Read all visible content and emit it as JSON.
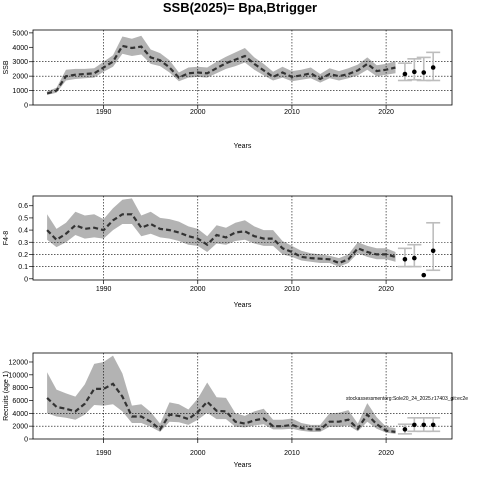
{
  "title": "SSB(2025)= Bpa,Btrigger",
  "chart_data": [
    {
      "type": "line",
      "ylabel": "SSB",
      "xlabel": "Years",
      "xlim": [
        1982.5,
        2027
      ],
      "ylim": [
        0,
        5200
      ],
      "xticks": [
        1990,
        2000,
        2010,
        2020
      ],
      "yticks": [
        0,
        1000,
        2000,
        3000,
        4000,
        5000
      ],
      "grid_x": [
        1990,
        2000,
        2010,
        2020
      ],
      "grid_y": [
        1000,
        2000,
        3000
      ],
      "series": [
        {
          "x": [
            1984,
            1985,
            1986,
            1987,
            1988,
            1989,
            1990,
            1991,
            1992,
            1993,
            1994,
            1995,
            1996,
            1997,
            1998,
            1999,
            2000,
            2001,
            2002,
            2003,
            2004,
            2005,
            2006,
            2007,
            2008,
            2009,
            2010,
            2011,
            2012,
            2013,
            2014,
            2015,
            2016,
            2017,
            2018,
            2019,
            2020,
            2021
          ],
          "y": [
            800,
            1000,
            2000,
            2100,
            2150,
            2200,
            2600,
            3000,
            4100,
            3950,
            4050,
            3300,
            3100,
            2600,
            1900,
            2200,
            2250,
            2200,
            2550,
            2900,
            3150,
            3400,
            2850,
            2400,
            1950,
            2250,
            1950,
            2050,
            2200,
            1800,
            2150,
            2000,
            2150,
            2400,
            2850,
            2350,
            2450,
            2600
          ],
          "lower": [
            700,
            850,
            1700,
            1800,
            1850,
            1900,
            2300,
            2650,
            3550,
            3400,
            3500,
            2850,
            2700,
            2250,
            1650,
            1900,
            1950,
            1900,
            2200,
            2500,
            2700,
            2950,
            2450,
            2050,
            1700,
            1900,
            1650,
            1750,
            1850,
            1550,
            1850,
            1700,
            1850,
            2050,
            2450,
            2000,
            2100,
            2200
          ],
          "upper": [
            950,
            1200,
            2450,
            2500,
            2500,
            2550,
            3000,
            3450,
            4750,
            4600,
            4800,
            3850,
            3600,
            3100,
            2250,
            2600,
            2650,
            2600,
            3000,
            3350,
            3650,
            3950,
            3300,
            2850,
            2300,
            2650,
            2350,
            2450,
            2600,
            2150,
            2550,
            2350,
            2550,
            2800,
            3300,
            2750,
            2850,
            3050
          ]
        }
      ],
      "projections": [
        {
          "x": 2022,
          "y": 2150,
          "lo": 1700,
          "hi": 2900
        },
        {
          "x": 2023,
          "y": 2300,
          "lo": 1750,
          "hi": 3200
        },
        {
          "x": 2024,
          "y": 2250,
          "lo": 1700,
          "hi": 3300
        },
        {
          "x": 2025,
          "y": 2600,
          "lo": 1700,
          "hi": 3650
        }
      ]
    },
    {
      "type": "line",
      "ylabel": "F4-8",
      "xlabel": "Years",
      "xlim": [
        1982.5,
        2027
      ],
      "ylim": [
        -0.01,
        0.68
      ],
      "xticks": [
        1990,
        2000,
        2010,
        2020
      ],
      "yticks": [
        0,
        0.1,
        0.2,
        0.3,
        0.4,
        0.5,
        0.6
      ],
      "grid_x": [
        1990,
        2000,
        2010,
        2020
      ],
      "grid_y": [
        0.1,
        0.2,
        0.3
      ],
      "series": [
        {
          "x": [
            1984,
            1985,
            1986,
            1987,
            1988,
            1989,
            1990,
            1991,
            1992,
            1993,
            1994,
            1995,
            1996,
            1997,
            1998,
            1999,
            2000,
            2001,
            2002,
            2003,
            2004,
            2005,
            2006,
            2007,
            2008,
            2009,
            2010,
            2011,
            2012,
            2013,
            2014,
            2015,
            2016,
            2017,
            2018,
            2019,
            2020,
            2021
          ],
          "y": [
            0.4,
            0.32,
            0.37,
            0.44,
            0.41,
            0.42,
            0.4,
            0.48,
            0.53,
            0.53,
            0.42,
            0.45,
            0.41,
            0.4,
            0.38,
            0.35,
            0.33,
            0.28,
            0.36,
            0.34,
            0.38,
            0.39,
            0.35,
            0.33,
            0.33,
            0.25,
            0.22,
            0.18,
            0.17,
            0.165,
            0.16,
            0.13,
            0.16,
            0.25,
            0.22,
            0.2,
            0.2,
            0.18
          ],
          "lower": [
            0.32,
            0.26,
            0.3,
            0.36,
            0.33,
            0.34,
            0.33,
            0.4,
            0.45,
            0.45,
            0.35,
            0.37,
            0.34,
            0.33,
            0.31,
            0.28,
            0.27,
            0.22,
            0.29,
            0.28,
            0.31,
            0.32,
            0.29,
            0.27,
            0.27,
            0.2,
            0.18,
            0.15,
            0.14,
            0.13,
            0.13,
            0.1,
            0.13,
            0.21,
            0.18,
            0.16,
            0.16,
            0.14
          ],
          "upper": [
            0.53,
            0.41,
            0.46,
            0.55,
            0.52,
            0.53,
            0.49,
            0.58,
            0.65,
            0.66,
            0.52,
            0.55,
            0.5,
            0.49,
            0.47,
            0.43,
            0.41,
            0.35,
            0.44,
            0.42,
            0.46,
            0.48,
            0.43,
            0.4,
            0.4,
            0.31,
            0.27,
            0.23,
            0.21,
            0.2,
            0.19,
            0.17,
            0.2,
            0.3,
            0.27,
            0.25,
            0.25,
            0.22
          ]
        }
      ],
      "projections": [
        {
          "x": 2022,
          "y": 0.16,
          "lo": 0.1,
          "hi": 0.25
        },
        {
          "x": 2023,
          "y": 0.17,
          "lo": 0.1,
          "hi": 0.28
        },
        {
          "x": 2024,
          "y": 0.03,
          "lo": 0.03,
          "hi": 0.03
        },
        {
          "x": 2025,
          "y": 0.23,
          "lo": 0.07,
          "hi": 0.46
        }
      ]
    },
    {
      "type": "line",
      "ylabel": "Recruits (age 1)",
      "xlabel": "Years",
      "xlim": [
        1982.5,
        2027
      ],
      "ylim": [
        0,
        13400
      ],
      "xticks": [
        1990,
        2000,
        2010,
        2020
      ],
      "yticks": [
        0,
        2000,
        4000,
        6000,
        8000,
        10000,
        12000
      ],
      "grid_x": [
        1990,
        2000,
        2010,
        2020
      ],
      "grid_y": [
        2000,
        4000
      ],
      "annotation": "stockassessmentorg:Sole20_24_2025.r17403_git:ec2e",
      "series": [
        {
          "x": [
            1984,
            1985,
            1986,
            1987,
            1988,
            1989,
            1990,
            1991,
            1992,
            1993,
            1994,
            1995,
            1996,
            1997,
            1998,
            1999,
            2000,
            2001,
            2002,
            2003,
            2004,
            2005,
            2006,
            2007,
            2008,
            2009,
            2010,
            2011,
            2012,
            2013,
            2014,
            2015,
            2016,
            2017,
            2018,
            2019,
            2020,
            2021
          ],
          "y": [
            6400,
            5000,
            4700,
            4300,
            5500,
            7800,
            7800,
            8600,
            6600,
            3500,
            3500,
            2700,
            1500,
            3800,
            3600,
            3100,
            4200,
            5800,
            4400,
            4300,
            2700,
            2400,
            2900,
            3200,
            2000,
            2000,
            2200,
            1700,
            1500,
            1500,
            2700,
            2700,
            3000,
            1600,
            3800,
            2300,
            1300,
            1100
          ],
          "lower": [
            4000,
            3500,
            3300,
            3000,
            3800,
            5300,
            5200,
            5400,
            4300,
            2500,
            2500,
            1900,
            1100,
            2700,
            2600,
            2200,
            3000,
            4100,
            3100,
            3100,
            1900,
            1800,
            2100,
            2300,
            1500,
            1500,
            1600,
            1300,
            1100,
            1100,
            1900,
            1900,
            2100,
            1200,
            2700,
            1600,
            1000,
            800
          ],
          "upper": [
            10400,
            7700,
            7100,
            6600,
            8500,
            11700,
            12000,
            13000,
            10200,
            5200,
            5400,
            4200,
            2400,
            5700,
            5400,
            4600,
            6300,
            8800,
            6500,
            6400,
            4000,
            3600,
            4300,
            4700,
            3000,
            3000,
            3200,
            2500,
            2200,
            2200,
            4000,
            4100,
            4500,
            2400,
            5600,
            3400,
            1900,
            1700
          ]
        }
      ],
      "projections": [
        {
          "x": 2022,
          "y": 1500,
          "lo": 800,
          "hi": 2300
        },
        {
          "x": 2023,
          "y": 2200,
          "lo": 1200,
          "hi": 3300
        },
        {
          "x": 2024,
          "y": 2200,
          "lo": 1200,
          "hi": 3300
        },
        {
          "x": 2025,
          "y": 2200,
          "lo": 1200,
          "hi": 3300
        }
      ]
    }
  ]
}
